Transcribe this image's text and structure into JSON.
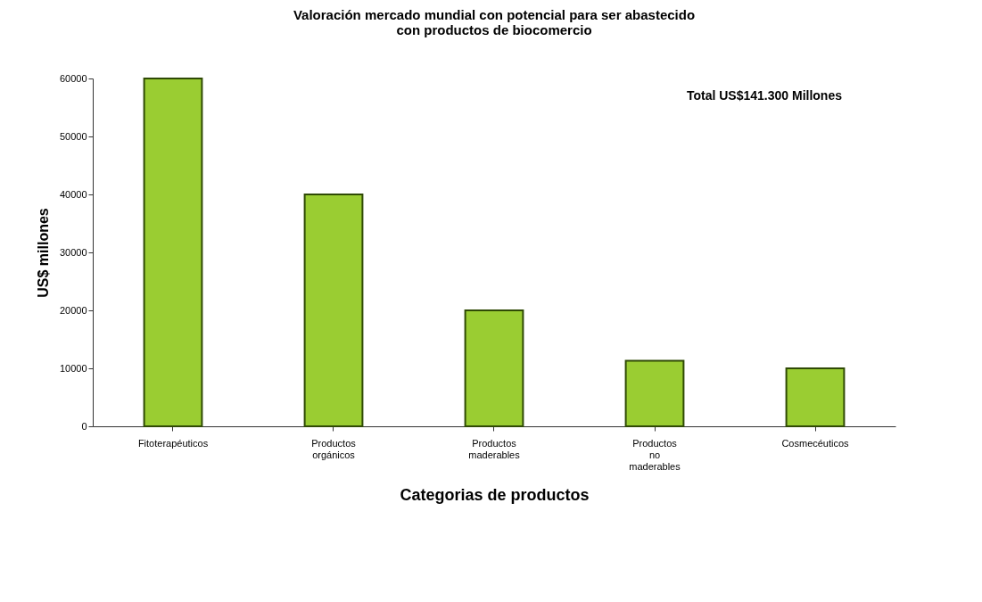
{
  "chart_data": {
    "type": "bar",
    "title": [
      "Valoración mercado mundial con potencial para ser abastecido",
      "con productos de biocomercio"
    ],
    "xlabel": "Categorias de productos",
    "ylabel": "US$ millones",
    "categories": [
      "Fitoterapéuticos",
      "Productos orgánicos",
      "Productos maderables",
      "Productos no maderables",
      "Cosmecéuticos"
    ],
    "values": [
      60000,
      40000,
      20000,
      11300,
      10000
    ],
    "color": "#9acd32",
    "ylim": [
      0,
      60000
    ],
    "yticks": [
      0,
      10000,
      20000,
      30000,
      40000,
      50000,
      60000
    ],
    "grid": false,
    "annotations": [
      "Total US$141.300 Millones"
    ]
  }
}
